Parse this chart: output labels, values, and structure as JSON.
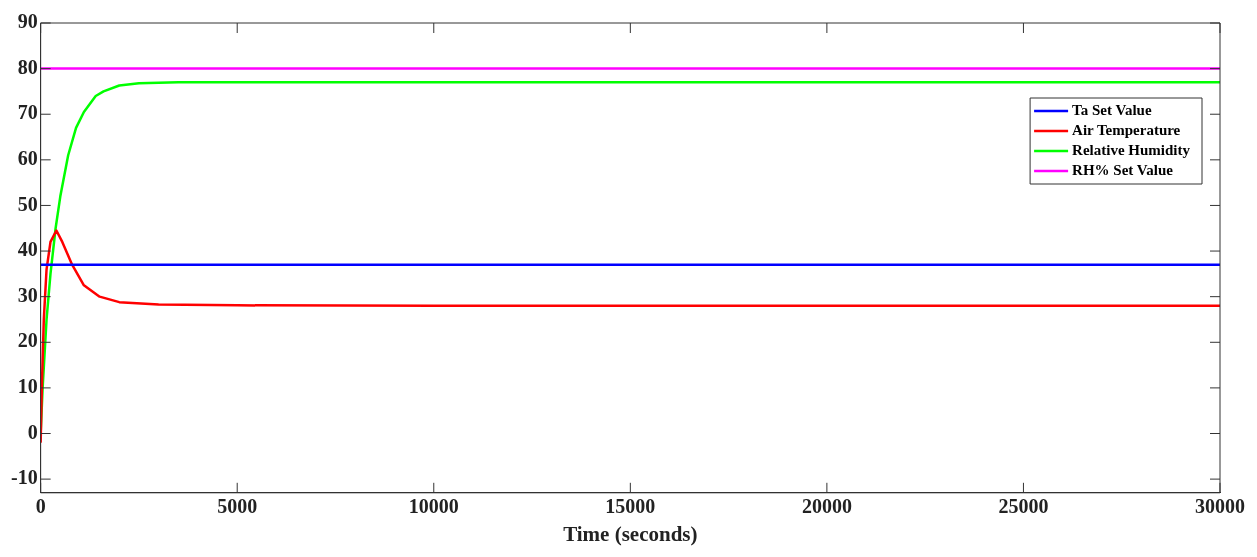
{
  "chart_data": {
    "type": "line",
    "xlabel": "Time (seconds)",
    "xlim": [
      0,
      30000
    ],
    "xticks": [
      0,
      5000,
      10000,
      15000,
      20000,
      25000,
      30000
    ],
    "ylim": [
      -13,
      90
    ],
    "yticks": [
      -10,
      0,
      10,
      20,
      30,
      40,
      50,
      60,
      70,
      80,
      90
    ],
    "grid": false,
    "legend": "top right",
    "marker": "none",
    "line_style": "solid",
    "series": [
      {
        "name": "Ta Set Value",
        "color": "#0000ff",
        "x": [
          0,
          30000
        ],
        "values": [
          37,
          37
        ]
      },
      {
        "name": "Air Temperature",
        "color": "#ff0000",
        "x": [
          0,
          30,
          80,
          150,
          250,
          400,
          550,
          800,
          1100,
          1500,
          2000,
          3000,
          5000,
          10000,
          20000,
          30000
        ],
        "values": [
          -2,
          10,
          25,
          36,
          42,
          44.5,
          42,
          37,
          32.5,
          30,
          28.8,
          28.3,
          28.1,
          28,
          28,
          28
        ]
      },
      {
        "name": "Relative Humidity",
        "color": "#00ff00",
        "x": [
          0,
          50,
          150,
          250,
          380,
          500,
          700,
          900,
          1100,
          1400,
          1600,
          2000,
          2500,
          3500,
          10000,
          30000
        ],
        "values": [
          0,
          10,
          25,
          35,
          45,
          52,
          61,
          67,
          70.5,
          74,
          75,
          76.3,
          76.8,
          77,
          77,
          77
        ]
      },
      {
        "name": "RH% Set Value",
        "color": "#ff00ff",
        "x": [
          0,
          30000
        ],
        "values": [
          80,
          80
        ]
      }
    ]
  }
}
